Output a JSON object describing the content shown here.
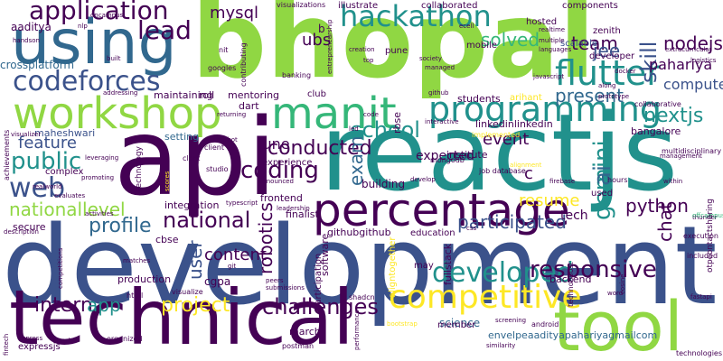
{
  "words": {
    "bhopal": "bhopal",
    "api": "api",
    "reactjs": "reactjs",
    "development": "development",
    "using": "using",
    "technical": "technical",
    "tool": "tool",
    "workshop": "workshop",
    "manit": "manit",
    "percentage": "percentage",
    "programming": "programming",
    "hackathon": "hackathon",
    "application": "application",
    "codeforces": "codeforces",
    "flutter": "flutter",
    "competitive": "competitive",
    "developed": "developed",
    "lead": "lead",
    "web": "web",
    "public": "public",
    "school": "school",
    "coding": "coding",
    "responsive": "responsive",
    "challenges": "challenges",
    "national": "national",
    "profile": "profile",
    "nationallevel": "nationallevel",
    "project": "project",
    "intern": "intern",
    "app": "app",
    "conducted": "conducted",
    "gemini": "gemini",
    "skill": "skill",
    "nextjs": "nextjs",
    "team": "team",
    "nodejs": "nodejs",
    "solved": "solved",
    "mysql": "mysql",
    "ubs": "ubs",
    "jee": "jee",
    "ai": "ai",
    "exam": "exam",
    "present": "present",
    "participated": "participated",
    "resume": "resume",
    "python": "python",
    "chat": "chat",
    "computer": "computer",
    "pahariya": "pahariya",
    "robotics": "robotics",
    "user": "user",
    "content": "content",
    "event": "event",
    "feature": "feature",
    "june": "june",
    "expected": "expected",
    "tech": "tech",
    "c": "c",
    "crossplatform": "crossplatform",
    "aaditya": "aaditya",
    "maheshwari": "maheshwari",
    "setting": "setting",
    "maintaining": "maintaining",
    "roll": "roll",
    "mentoring": "mentoring",
    "dart": "dart",
    "institute": "institute",
    "building": "building",
    "science": "science",
    "mobile": "mobile",
    "hosted": "hosted",
    "bangalore": "bangalore",
    "used": "used",
    "fullstack": "fullstack",
    "backend": "backend",
    "education": "education",
    "may": "may",
    "march": "march",
    "member": "member",
    "cgpa": "cgpa",
    "integration": "integration",
    "production": "production",
    "secure": "secure",
    "cbse": "cbse",
    "finalist": "finalist",
    "githubgithub": "githubgithub",
    "linkedinlinkedin": "linkedinlinkedin",
    "students": "students",
    "experience": "experience",
    "frontend": "frontend",
    "software": "software",
    "participation": "participation",
    "club": "club",
    "rbse": "rbse",
    "developer": "developer",
    "zenith": "zenith",
    "components": "components",
    "scalable": "scalable",
    "collaborated": "collaborated",
    "b": "b",
    "illustrate": "illustrate",
    "visualizations": "visualizations",
    "pune": "pune",
    "nit": "nit",
    "googles": "googles",
    "banking": "banking",
    "clerk": "clerk",
    "studio": "studio",
    "client": "client",
    "complex": "complex",
    "technology": "technology",
    "expressjs": "expressjs",
    "postman": "postman",
    "charts": "charts",
    "organized": "organized",
    "html": "html",
    "visualize": "visualize",
    "matches": "matches",
    "shadcn": "shadcn",
    "job database": "job database",
    "mongodb": "mongodb",
    "firebase": "firebase",
    "android": "android",
    "envelpeaadityapahariyagmailcom": "envelpeaadityapahariyagmailcom",
    "technologies": "technologies",
    "otpcontactsharing": "otpcontactsharing",
    "execution": "execution",
    "included": "included",
    "thunder": "thunder",
    "multidisciplinary": "multidisciplinary",
    "logistics": "logistics",
    "offcampus": "offcampus",
    "collaborative": "collaborative",
    "implemented": "implemented",
    "javascript": "javascript",
    "managed": "managed",
    "society": "society",
    "top": "top",
    "creation": "creation",
    "github": "github",
    "prototype": "prototype",
    "along": "along",
    "interactive": "interactive",
    "arihant": "arihant",
    "docker": "docker",
    "multiple": "multiple",
    "languages": "languages",
    "realtime": "realtime",
    "handson": "handson",
    "nlp": "nlp",
    "built": "built",
    "oncampus": "oncampus",
    "leveraging": "leveraging",
    "promoting": "promoting",
    "evaluates": "evaluates",
    "achievements": "achievements",
    "visualizer": "visualizer",
    "realworld": "realworld",
    "activities": "activities",
    "description": "description",
    "fintech": "fintech",
    "express": "express",
    "competitions": "competitions",
    "typescript": "typescript",
    "leadership": "leadership",
    "submissions": "submissions",
    "peers": "peers",
    "git": "git",
    "alignment": "alignment",
    "develop": "develop",
    "aligntogether": "aligntogether",
    "hours": "hours",
    "fastapi": "fastapi",
    "word": "word",
    "technoboost": "technoboost",
    "cosine": "cosine",
    "screening": "screening",
    "similarity": "similarity",
    "css": "css",
    "performance": "performance",
    "bootstrap": "bootstrap",
    "code": "code",
    "returning": "returning",
    "chatbot": "chatbot",
    "contributing": "contributing",
    "entrepreneurship": "entrepreneurship",
    "within": "within",
    "management": "management",
    "extracurricular": "extracurricular",
    "ecell": "ecell",
    "addressing": "addressing",
    "scores": "scores",
    "led": "led",
    "announced": "announced"
  },
  "palette": {
    "dark_purple": "#440154",
    "indigo": "#3b528b",
    "blue": "#31688e",
    "teal": "#21918c",
    "green": "#35b779",
    "light_green": "#90d743",
    "yellow": "#fde725"
  }
}
